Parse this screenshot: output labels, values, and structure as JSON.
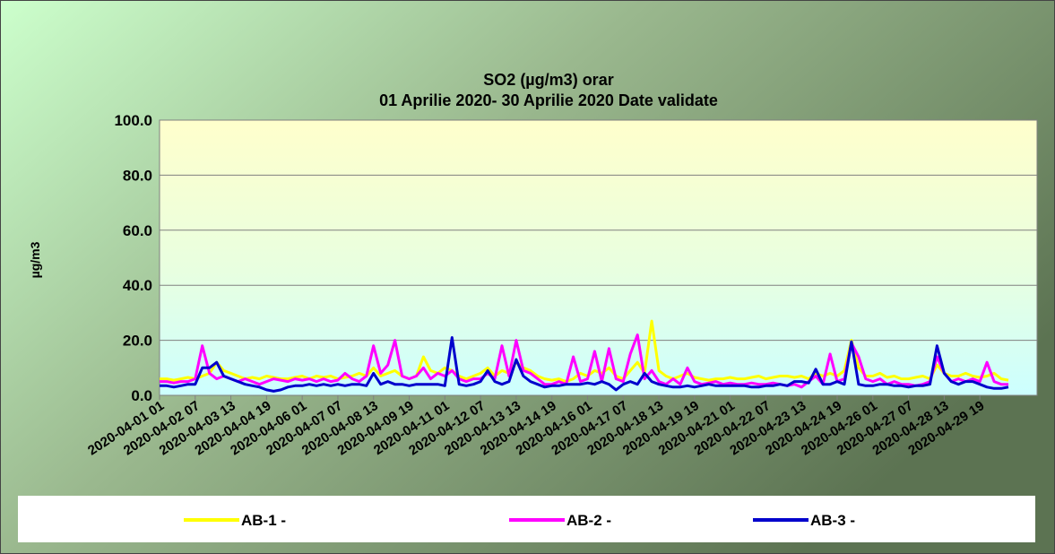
{
  "chart_data": {
    "type": "line",
    "title": "SO2 (µg/m3) orar",
    "subtitle": "01 Aprilie 2020- 30 Aprilie 2020 Date validate",
    "y_label": "µg/m3",
    "categories": [
      "2020-04-01 01",
      null,
      null,
      null,
      null,
      "2020-04-02 07",
      null,
      null,
      null,
      null,
      "2020-04-03 13",
      null,
      null,
      null,
      null,
      "2020-04-04 19",
      null,
      null,
      null,
      null,
      "2020-04-06 01",
      null,
      null,
      null,
      null,
      "2020-04-07 07",
      null,
      null,
      null,
      null,
      "2020-04-08 13",
      null,
      null,
      null,
      null,
      "2020-04-09 19",
      null,
      null,
      null,
      null,
      "2020-04-11 01",
      null,
      null,
      null,
      null,
      "2020-04-12 07",
      null,
      null,
      null,
      null,
      "2020-04-13 13",
      null,
      null,
      null,
      null,
      "2020-04-14 19",
      null,
      null,
      null,
      null,
      "2020-04-16 01",
      null,
      null,
      null,
      null,
      "2020-04-17 07",
      null,
      null,
      null,
      null,
      "2020-04-18 13",
      null,
      null,
      null,
      null,
      "2020-04-19 19",
      null,
      null,
      null,
      null,
      "2020-04-21 01",
      null,
      null,
      null,
      null,
      "2020-04-22 07",
      null,
      null,
      null,
      null,
      "2020-04-23 13",
      null,
      null,
      null,
      null,
      "2020-04-24 19",
      null,
      null,
      null,
      null,
      "2020-04-26 01",
      null,
      null,
      null,
      null,
      "2020-04-27 07",
      null,
      null,
      null,
      null,
      "2020-04-28 13",
      null,
      null,
      null,
      null,
      "2020-04-29 19",
      null,
      null,
      null,
      null
    ],
    "series": [
      {
        "name": "AB-1 -",
        "color": "#ffff00",
        "values": [
          6,
          6,
          5.5,
          6,
          6.5,
          6,
          7,
          8,
          12,
          9,
          8,
          7,
          6,
          6.5,
          6,
          7,
          6.5,
          6,
          6,
          6.5,
          7,
          6,
          7,
          6.5,
          7,
          6,
          6.5,
          7,
          8,
          7,
          10,
          7,
          8,
          9,
          7,
          6,
          7,
          14,
          9,
          8,
          10,
          9,
          7,
          6,
          7,
          8,
          10,
          7,
          9,
          8,
          12,
          10,
          9,
          7,
          6,
          5.5,
          6,
          5,
          6,
          8,
          7,
          9,
          8,
          10,
          7,
          6,
          9,
          12,
          8,
          27,
          9,
          7,
          6,
          7,
          8,
          6.5,
          6,
          5.5,
          6,
          6,
          6.5,
          6,
          6,
          6.5,
          7,
          6,
          6.5,
          7,
          7,
          6.5,
          7,
          6,
          8,
          7,
          8,
          7,
          9,
          20,
          10,
          7,
          7,
          8,
          6.5,
          7,
          6,
          6,
          6.5,
          7,
          6,
          11,
          8,
          7,
          7,
          8,
          7,
          6.5,
          7,
          8,
          6,
          5.5
        ]
      },
      {
        "name": "AB-2 -",
        "color": "#ff00ff",
        "values": [
          5,
          5,
          4.5,
          5,
          5,
          6,
          18,
          8,
          6,
          7,
          6,
          5,
          6,
          5,
          4,
          5,
          6,
          5.5,
          5,
          6,
          5.5,
          6,
          5,
          6,
          5,
          5.5,
          8,
          6,
          5,
          7,
          18,
          8,
          11,
          20,
          7,
          6,
          7,
          10,
          6,
          8,
          7,
          9,
          6,
          5,
          6,
          6,
          8,
          6,
          18,
          7,
          20,
          9,
          8,
          6,
          4,
          4,
          5,
          4,
          14,
          5,
          6,
          16,
          5,
          17,
          6,
          5,
          15,
          22,
          6,
          9,
          5,
          4,
          6,
          4,
          10,
          5,
          4,
          4.5,
          5,
          4,
          4.5,
          4,
          4,
          4.5,
          4,
          4,
          4.5,
          4,
          3.5,
          4,
          3,
          5,
          7,
          4,
          15,
          5,
          6,
          19,
          14,
          6,
          5,
          6,
          4,
          5,
          4,
          4,
          3.5,
          4,
          5,
          14,
          8,
          5,
          6,
          5,
          6,
          5,
          12,
          5,
          4,
          4
        ]
      },
      {
        "name": "AB-3 -",
        "color": "#0000cc",
        "values": [
          3.5,
          3.5,
          3,
          3.5,
          4,
          4,
          10,
          10,
          12,
          7,
          6,
          5,
          4,
          3.5,
          3,
          2,
          1.5,
          2,
          3,
          3.5,
          3.5,
          4,
          3.5,
          4,
          3.5,
          4,
          3.5,
          4,
          4,
          3.5,
          8,
          4,
          5,
          4,
          4,
          3.5,
          4,
          4,
          4,
          4,
          3.5,
          21,
          4,
          3.5,
          4,
          5,
          9,
          5,
          4,
          5,
          13,
          7,
          5,
          4,
          3,
          3.5,
          3.5,
          4,
          4,
          4,
          4.5,
          4,
          5,
          4,
          2,
          4,
          5,
          4,
          8,
          5,
          4,
          3.5,
          3,
          3,
          3.5,
          3,
          3.5,
          4,
          3.5,
          3.5,
          3.5,
          3.5,
          3.5,
          3,
          3,
          3.5,
          3.5,
          4,
          3.5,
          5,
          5,
          4.5,
          9.5,
          4,
          4,
          5,
          4,
          19.5,
          4,
          3.5,
          3.5,
          4,
          4,
          3.5,
          3.5,
          3,
          3.5,
          3.5,
          4,
          18,
          8,
          5,
          4,
          5,
          5,
          4,
          3,
          2.5,
          2.5,
          3
        ]
      }
    ],
    "ylim": [
      0,
      100
    ],
    "yticks": [
      {
        "value": 0,
        "label": "0.0"
      },
      {
        "value": 20,
        "label": "20.0"
      },
      {
        "value": 40,
        "label": "40.0"
      },
      {
        "value": 60,
        "label": "60.0"
      },
      {
        "value": 80,
        "label": "80.0"
      },
      {
        "value": 100,
        "label": "100.0"
      }
    ],
    "grid": true,
    "legend": "bottom"
  }
}
